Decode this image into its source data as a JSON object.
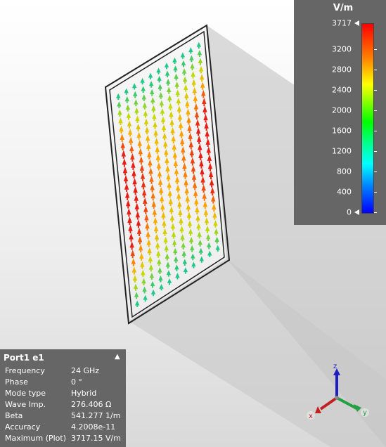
{
  "legend": {
    "unit": "V/m",
    "max_label": "3717",
    "ticks": [
      {
        "label": "3200",
        "value": 3200
      },
      {
        "label": "2800",
        "value": 2800
      },
      {
        "label": "2400",
        "value": 2400
      },
      {
        "label": "2000",
        "value": 2000
      },
      {
        "label": "1600",
        "value": 1600
      },
      {
        "label": "1200",
        "value": 1200
      },
      {
        "label": "800",
        "value": 800
      },
      {
        "label": "400",
        "value": 400
      },
      {
        "label": "0",
        "value": 0
      }
    ],
    "max_value": 3717,
    "colors": [
      "#0000ff",
      "#0080ff",
      "#00ffff",
      "#00ff80",
      "#00ff00",
      "#80ff00",
      "#ffff00",
      "#ff8000",
      "#ff0000"
    ]
  },
  "port_info": {
    "title": "Port1 e1",
    "collapse_icon": "chevron-up-icon",
    "rows": [
      {
        "key": "Frequency",
        "value": "24 GHz"
      },
      {
        "key": "Phase",
        "value": "0 °"
      },
      {
        "key": "Mode type",
        "value": "Hybrid"
      },
      {
        "key": "Wave Imp.",
        "value": "276.406 Ω"
      },
      {
        "key": "Beta",
        "value": "541.277 1/m"
      },
      {
        "key": "Accuracy",
        "value": "4.2008e-11"
      },
      {
        "key": "Maximum (Plot)",
        "value": "3717.15 V/m"
      }
    ]
  },
  "axes": {
    "z_label": "z",
    "y_label": "y",
    "x_label": "x",
    "z_color": "#2020c0",
    "y_color": "#20a040",
    "x_color": "#c02020"
  },
  "field_plot": {
    "description_icon": "e-field-arrows",
    "rows": 26,
    "cols": 11,
    "edge_color": "#ff2000",
    "center_color": "#ffe000",
    "corner_color": "#20c0c0"
  }
}
